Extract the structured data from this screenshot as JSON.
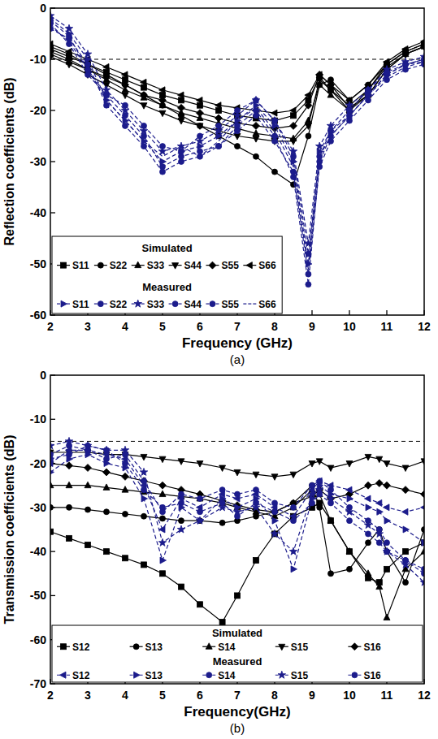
{
  "chart_data": [
    {
      "type": "line",
      "panel_label": "(a)",
      "x_label": "Frequency (GHz)",
      "y_label": "Reflection coefficients (dB)",
      "xlim": [
        2,
        12
      ],
      "xticks": [
        2,
        3,
        4,
        5,
        6,
        7,
        8,
        9,
        10,
        11,
        12
      ],
      "ylim": [
        -60,
        0
      ],
      "yticks": [
        -60,
        -50,
        -40,
        -30,
        -20,
        -10,
        0
      ],
      "grid": false,
      "legend": "bottom left",
      "reference_line": -10,
      "x": [
        2,
        2.5,
        3,
        3.5,
        4,
        4.5,
        5,
        5.5,
        6,
        6.5,
        7,
        7.5,
        8,
        8.5,
        8.9,
        9.2,
        9.5,
        10,
        10.5,
        11,
        11.5,
        12
      ],
      "series": [
        {
          "name": "S11",
          "group": "Simulated",
          "color": "#000000",
          "marker": "square",
          "line_style": "solid",
          "values": [
            -8,
            -9.5,
            -11,
            -12.5,
            -14,
            -15.5,
            -17,
            -18,
            -19,
            -20,
            -21,
            -21.5,
            -22,
            -21,
            -18,
            -13.5,
            -16,
            -20,
            -16,
            -11,
            -8.5,
            -7
          ]
        },
        {
          "name": "S22",
          "group": "Simulated",
          "color": "#000000",
          "marker": "circle",
          "line_style": "solid",
          "values": [
            -7.5,
            -9,
            -11,
            -13,
            -15,
            -17,
            -19,
            -21,
            -23,
            -25,
            -27,
            -29,
            -32,
            -34.5,
            -25,
            -15,
            -14,
            -18,
            -15,
            -11,
            -8.5,
            -7
          ]
        },
        {
          "name": "S33",
          "group": "Simulated",
          "color": "#000000",
          "marker": "triangle",
          "line_style": "solid",
          "values": [
            -9,
            -10.5,
            -12,
            -14,
            -16,
            -17.5,
            -19,
            -20.5,
            -21.5,
            -22.5,
            -23.5,
            -24.5,
            -25,
            -25.5,
            -22,
            -15,
            -17,
            -20,
            -17,
            -12,
            -9,
            -7.5
          ]
        },
        {
          "name": "S44",
          "group": "Simulated",
          "color": "#000000",
          "marker": "triangle-down",
          "line_style": "solid",
          "values": [
            -9.5,
            -11,
            -13,
            -15,
            -17,
            -19,
            -20.5,
            -22,
            -23,
            -24,
            -25,
            -25.5,
            -26,
            -26,
            -23,
            -14,
            -16,
            -19,
            -16,
            -11.5,
            -9,
            -7.5
          ]
        },
        {
          "name": "S55",
          "group": "Simulated",
          "color": "#000000",
          "marker": "diamond",
          "line_style": "solid",
          "values": [
            -8.5,
            -10,
            -12,
            -13.5,
            -15,
            -17,
            -18,
            -19.5,
            -20.5,
            -21.5,
            -22.5,
            -23,
            -23.5,
            -23,
            -19,
            -13,
            -15,
            -19.5,
            -17,
            -12,
            -9,
            -7.5
          ]
        },
        {
          "name": "S66",
          "group": "Simulated",
          "color": "#000000",
          "marker": "triangle-left",
          "line_style": "solid",
          "values": [
            -7,
            -8.5,
            -10,
            -11.5,
            -13,
            -14.5,
            -16,
            -17,
            -18,
            -19,
            -19.5,
            -20,
            -20.5,
            -20,
            -17,
            -13,
            -15,
            -18,
            -15,
            -10.5,
            -8,
            -6.5
          ]
        },
        {
          "name": "S11",
          "group": "Measured",
          "color": "#1c1c8c",
          "marker": "triangle-right",
          "line_style": "dashed",
          "values": [
            -2,
            -5,
            -10,
            -18,
            -22,
            -26,
            -30,
            -28,
            -27,
            -25,
            -22,
            -19,
            -23,
            -30,
            -50,
            -28,
            -24,
            -21,
            -17,
            -13,
            -11,
            -10
          ]
        },
        {
          "name": "S22",
          "group": "Measured",
          "color": "#1c1c8c",
          "marker": "circle",
          "line_style": "dashed",
          "values": [
            -3,
            -7,
            -13,
            -17,
            -21,
            -25,
            -31,
            -29,
            -28,
            -27,
            -23,
            -20,
            -25,
            -33,
            -54,
            -30,
            -25,
            -21,
            -17,
            -13,
            -11,
            -10.5
          ]
        },
        {
          "name": "S33",
          "group": "Measured",
          "color": "#1c1c8c",
          "marker": "star",
          "line_style": "dashed",
          "values": [
            -1.5,
            -4,
            -9,
            -16,
            -20,
            -24,
            -28,
            -27,
            -26,
            -24,
            -21,
            -18,
            -22,
            -28,
            -46,
            -27,
            -23,
            -19,
            -16,
            -12,
            -10.5,
            -9.5
          ]
        },
        {
          "name": "S44",
          "group": "Measured",
          "color": "#1c1c8c",
          "marker": "circle",
          "line_style": "dashed",
          "values": [
            -4,
            -6,
            -11,
            -19,
            -23,
            -27,
            -32,
            -30,
            -29,
            -27,
            -24,
            -21,
            -26,
            -32,
            -52,
            -31,
            -26,
            -22,
            -18,
            -14,
            -12,
            -11
          ]
        },
        {
          "name": "S55",
          "group": "Measured",
          "color": "#1c1c8c",
          "marker": "circle",
          "line_style": "dashed",
          "values": [
            -2.5,
            -5.5,
            -12,
            -17,
            -19,
            -23,
            -27,
            -28,
            -25,
            -23,
            -20,
            -18,
            -22,
            -29,
            -48,
            -29,
            -24,
            -20,
            -16,
            -12.5,
            -11,
            -10
          ]
        },
        {
          "name": "S66",
          "group": "Measured",
          "color": "#1c1c8c",
          "marker": "none",
          "line_style": "dashed",
          "values": [
            -3.5,
            -6.5,
            -12,
            -18,
            -22,
            -26,
            -29,
            -27,
            -29,
            -26,
            -22,
            -19.5,
            -24,
            -31,
            -51,
            -29,
            -25,
            -21,
            -17,
            -13.5,
            -11.5,
            -10.5
          ]
        }
      ]
    },
    {
      "type": "line",
      "panel_label": "(b)",
      "x_label": "Frequency(GHz)",
      "y_label": "Transmission coefficients (dB)",
      "xlim": [
        2,
        12
      ],
      "xticks": [
        2,
        3,
        4,
        5,
        6,
        7,
        8,
        9,
        10,
        11,
        12
      ],
      "ylim": [
        -70,
        0
      ],
      "yticks": [
        -70,
        -60,
        -50,
        -40,
        -30,
        -20,
        -10,
        0
      ],
      "grid": false,
      "legend": "bottom",
      "reference_line": -15,
      "x": [
        2,
        2.5,
        3,
        3.5,
        4,
        4.5,
        5,
        5.5,
        6,
        6.6,
        7,
        7.5,
        8,
        8.5,
        9,
        9.2,
        9.5,
        10,
        10.5,
        10.8,
        11,
        11.5,
        12
      ],
      "series": [
        {
          "name": "S12",
          "group": "Simulated",
          "color": "#000000",
          "marker": "square",
          "line_style": "solid",
          "values": [
            -35.5,
            -37,
            -38.5,
            -40,
            -41.5,
            -43,
            -45,
            -48,
            -52,
            -56,
            -50,
            -42,
            -36,
            -32,
            -30,
            -29,
            -33,
            -40,
            -46,
            -47,
            -44,
            -40,
            -38
          ]
        },
        {
          "name": "S13",
          "group": "Simulated",
          "color": "#000000",
          "marker": "circle",
          "line_style": "solid",
          "values": [
            -30,
            -30,
            -30.5,
            -31,
            -31.5,
            -32,
            -32.5,
            -33,
            -33,
            -33.5,
            -33,
            -32,
            -31,
            -29,
            -25,
            -30,
            -45,
            -44,
            -38,
            -35,
            -40,
            -47,
            -35
          ]
        },
        {
          "name": "S14",
          "group": "Simulated",
          "color": "#000000",
          "marker": "triangle",
          "line_style": "solid",
          "values": [
            -25,
            -25,
            -25,
            -25.5,
            -26,
            -26.5,
            -27,
            -27.5,
            -28,
            -29,
            -30,
            -31,
            -32,
            -30,
            -26,
            -27,
            -33,
            -40,
            -45,
            -48,
            -55,
            -44,
            -40
          ]
        },
        {
          "name": "S15",
          "group": "Simulated",
          "color": "#000000",
          "marker": "triangle-down",
          "line_style": "solid",
          "values": [
            -17.5,
            -17.5,
            -17.5,
            -18,
            -18,
            -18.5,
            -19,
            -19.5,
            -20,
            -21,
            -22,
            -22.5,
            -23,
            -22.5,
            -20,
            -19.5,
            -21,
            -20,
            -18.5,
            -19,
            -20,
            -21,
            -19.5
          ]
        },
        {
          "name": "S16",
          "group": "Simulated",
          "color": "#000000",
          "marker": "diamond",
          "line_style": "solid",
          "values": [
            -20,
            -20.5,
            -21,
            -22,
            -23,
            -24,
            -25,
            -26,
            -27,
            -28.5,
            -29.5,
            -30.5,
            -31,
            -29,
            -27.5,
            -26,
            -28,
            -27,
            -25,
            -24.5,
            -25,
            -26,
            -27
          ]
        },
        {
          "name": "S12",
          "group": "Measured",
          "color": "#1c1c8c",
          "marker": "triangle-left",
          "line_style": "dashed",
          "values": [
            -20,
            -17,
            -17,
            -18,
            -19,
            -25,
            -35,
            -28,
            -30,
            -27,
            -28,
            -27,
            -30,
            -32,
            -26,
            -24,
            -25,
            -26,
            -28,
            -29,
            -30,
            -31,
            -30
          ]
        },
        {
          "name": "S13",
          "group": "Measured",
          "color": "#1c1c8c",
          "marker": "triangle-right",
          "line_style": "dashed",
          "values": [
            -22,
            -19,
            -18,
            -20,
            -21,
            -28,
            -42,
            -30,
            -33,
            -28,
            -30,
            -28,
            -33,
            -44,
            -28,
            -25,
            -27,
            -28,
            -30,
            -31,
            -33,
            -35,
            -38
          ]
        },
        {
          "name": "S14",
          "group": "Measured",
          "color": "#1c1c8c",
          "marker": "circle",
          "line_style": "dashed",
          "values": [
            -18,
            -16,
            -17,
            -19,
            -18,
            -24,
            -31,
            -27,
            -28,
            -26,
            -27,
            -26,
            -29,
            -30,
            -25,
            -24,
            -26,
            -30,
            -33,
            -35,
            -38,
            -42,
            -45
          ]
        },
        {
          "name": "S15",
          "group": "Measured",
          "color": "#1c1c8c",
          "marker": "star",
          "line_style": "dashed",
          "values": [
            -16,
            -15,
            -16,
            -17,
            -17,
            -22,
            -38,
            -35,
            -33,
            -30,
            -31,
            -30,
            -36,
            -40,
            -27,
            -26,
            -28,
            -31,
            -34,
            -36,
            -40,
            -43,
            -47
          ]
        },
        {
          "name": "S16",
          "group": "Measured",
          "color": "#1c1c8c",
          "marker": "circle",
          "line_style": "dashed",
          "values": [
            -19,
            -18,
            -16,
            -17,
            -20,
            -26,
            -30,
            -29,
            -31,
            -29,
            -32,
            -29,
            -31,
            -33,
            -29,
            -27,
            -29,
            -33,
            -36,
            -38,
            -40,
            -42,
            -44
          ]
        }
      ]
    }
  ]
}
